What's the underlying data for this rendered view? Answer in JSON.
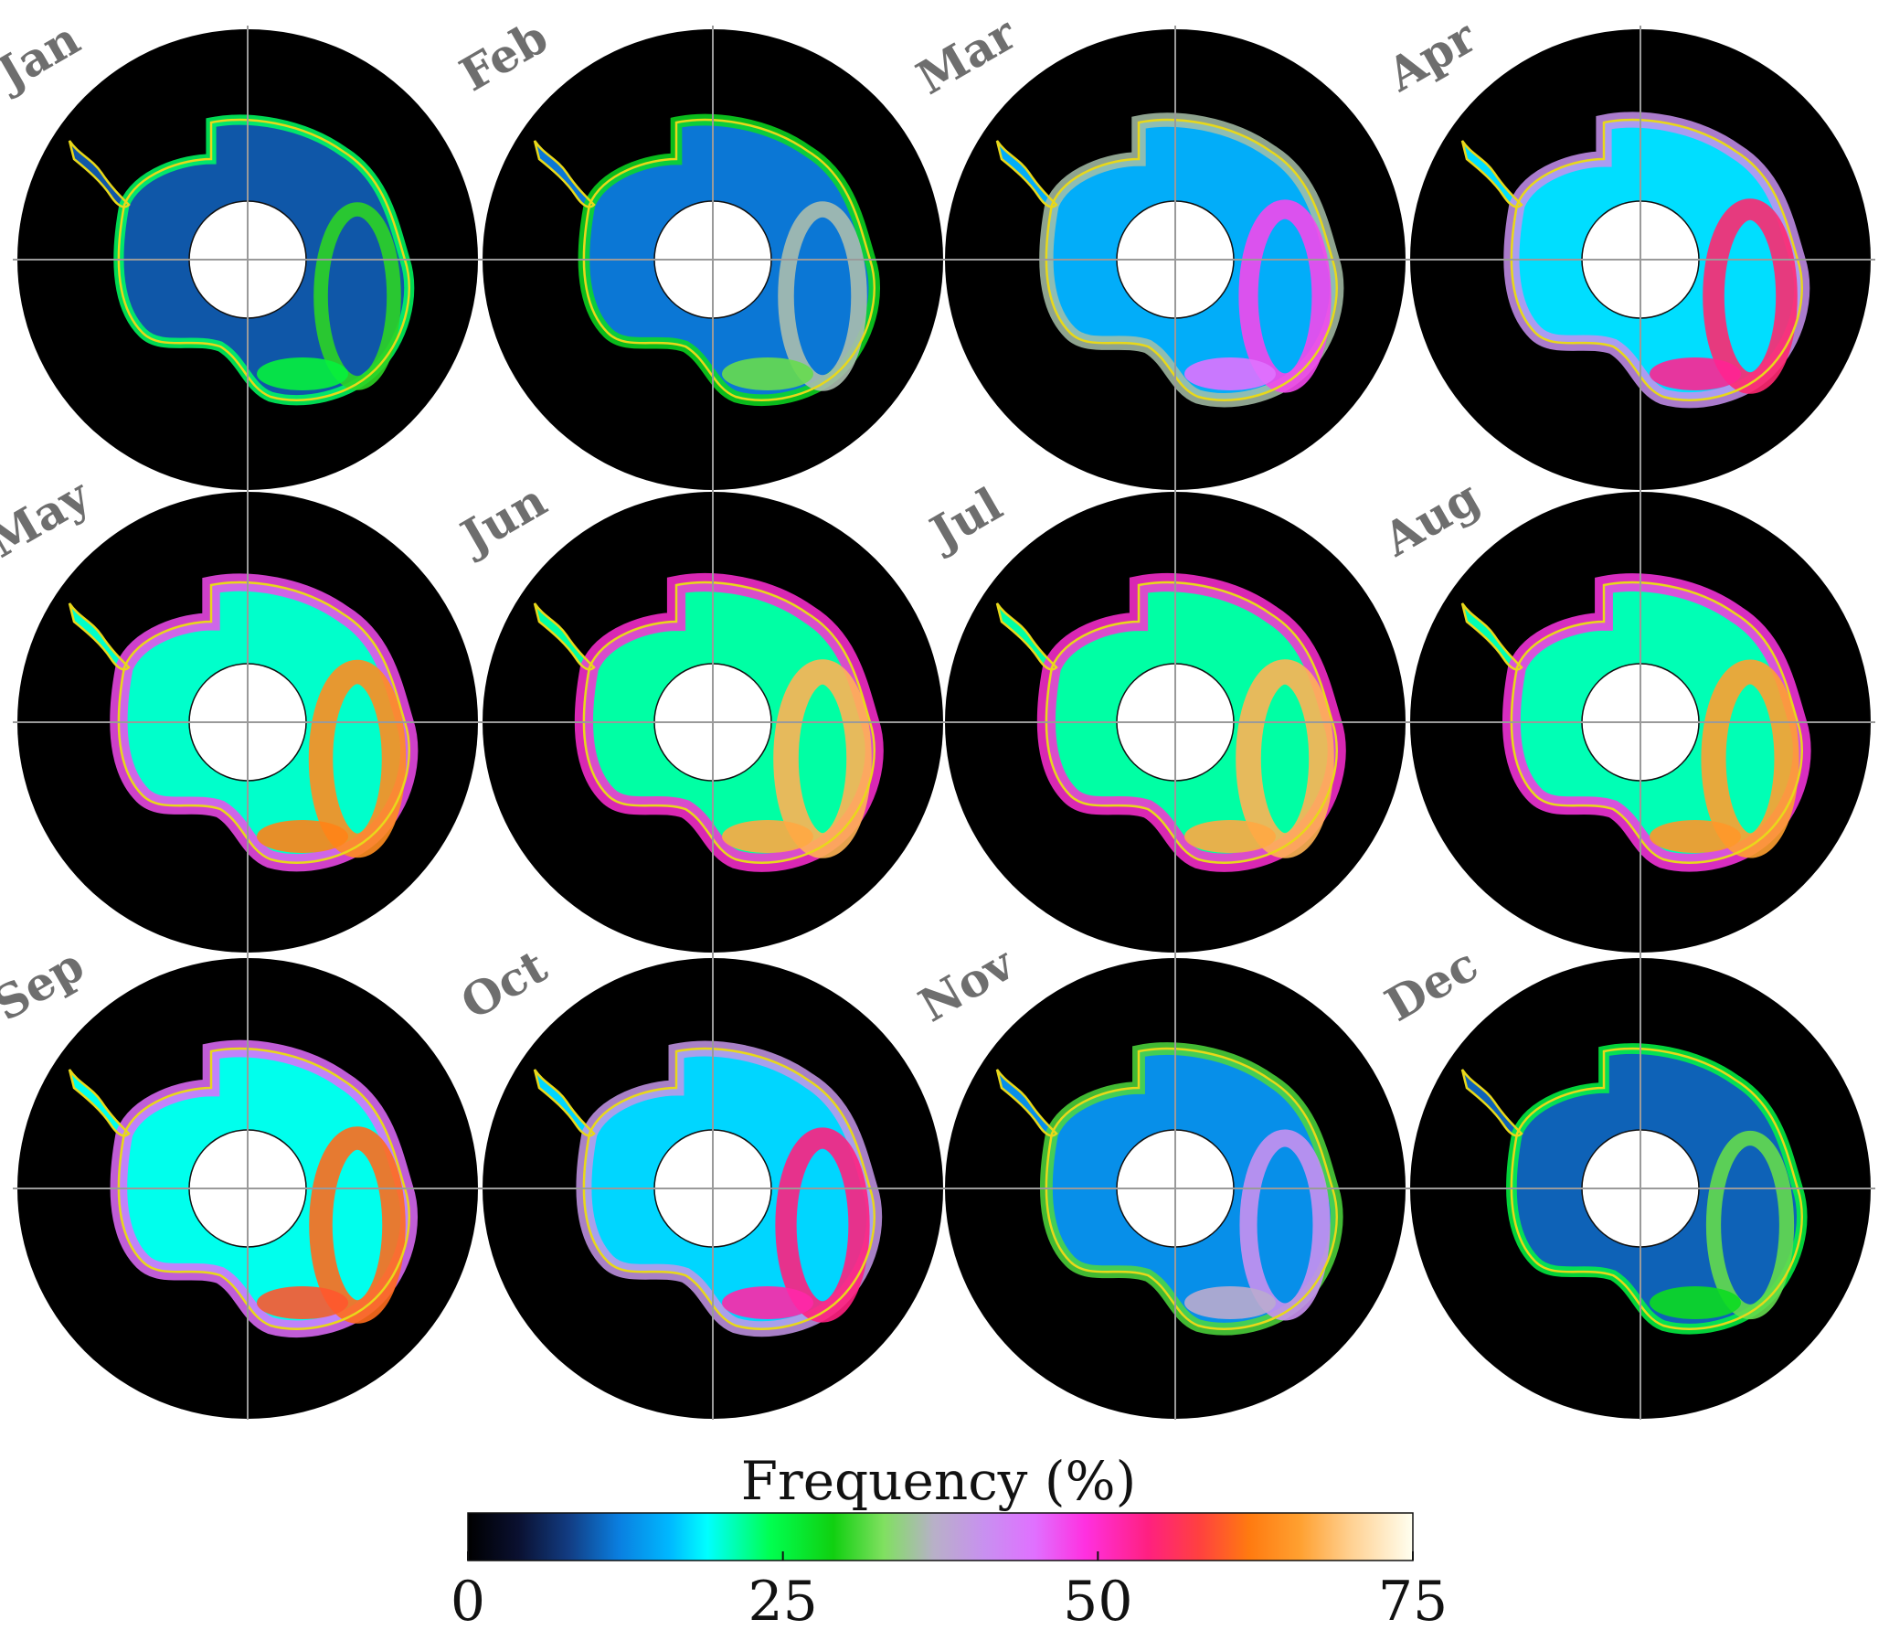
{
  "panels": [
    {
      "month": "Jan",
      "intensity": 0.1
    },
    {
      "month": "Feb",
      "intensity": 0.22
    },
    {
      "month": "Mar",
      "intensity": 0.45
    },
    {
      "month": "Apr",
      "intensity": 0.6
    },
    {
      "month": "May",
      "intensity": 0.78
    },
    {
      "month": "Jun",
      "intensity": 0.85
    },
    {
      "month": "Jul",
      "intensity": 0.85
    },
    {
      "month": "Aug",
      "intensity": 0.82
    },
    {
      "month": "Sep",
      "intensity": 0.72
    },
    {
      "month": "Oct",
      "intensity": 0.58
    },
    {
      "month": "Nov",
      "intensity": 0.32
    },
    {
      "month": "Dec",
      "intensity": 0.14
    }
  ],
  "colorbar": {
    "title": "Frequency (%)",
    "min": 0,
    "max": 75,
    "ticks": [
      "0",
      "25",
      "50",
      "75"
    ],
    "tick_values": [
      0,
      25,
      50,
      75
    ],
    "stops": [
      {
        "value": 0,
        "color": "#000000"
      },
      {
        "value": 4,
        "color": "#0a1030"
      },
      {
        "value": 8,
        "color": "#123c82"
      },
      {
        "value": 12,
        "color": "#0a7fe0"
      },
      {
        "value": 16,
        "color": "#00b8ff"
      },
      {
        "value": 19,
        "color": "#00ffff"
      },
      {
        "value": 24,
        "color": "#00ff50"
      },
      {
        "value": 29,
        "color": "#10d010"
      },
      {
        "value": 33,
        "color": "#80e060"
      },
      {
        "value": 37,
        "color": "#b8b0c8"
      },
      {
        "value": 41,
        "color": "#c890f0"
      },
      {
        "value": 45,
        "color": "#e070ff"
      },
      {
        "value": 49,
        "color": "#ff30e0"
      },
      {
        "value": 54,
        "color": "#ff2080"
      },
      {
        "value": 58,
        "color": "#ff4040"
      },
      {
        "value": 62,
        "color": "#ff7a10"
      },
      {
        "value": 66,
        "color": "#ffa030"
      },
      {
        "value": 70,
        "color": "#ffd090"
      },
      {
        "value": 75,
        "color": "#fffff0"
      }
    ]
  },
  "colors": {
    "ocean": "#000000",
    "coastline": "#e8d81a",
    "pole_hole": "#ffffff",
    "gridline": "#9a9a9a",
    "label": "#6e6e6e"
  }
}
